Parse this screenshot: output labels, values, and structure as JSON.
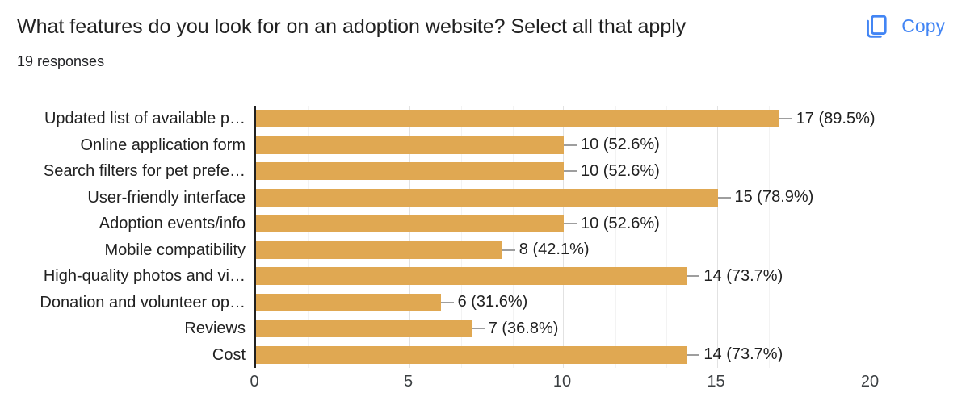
{
  "header": {
    "title": "What features do you look for on an adoption website? Select all that apply",
    "responses_text": "19 responses",
    "copy_label": "Copy"
  },
  "colors": {
    "bar_gold": "#e0a852",
    "accent_blue": "#4285f4",
    "text_dark": "#212121",
    "connector_gray": "#9e9e9e"
  },
  "chart_data": {
    "type": "bar",
    "orientation": "horizontal",
    "title": "What features do you look for on an adoption website? Select all that apply",
    "subtitle": "19 responses",
    "categories": [
      "Updated list of available p…",
      "Online application form",
      "Search filters for pet prefe…",
      "User-friendly interface",
      "Adoption events/info",
      "Mobile compatibility",
      "High-quality photos and vi…",
      "Donation and volunteer op…",
      "Reviews",
      "Cost"
    ],
    "values": [
      17,
      10,
      10,
      15,
      10,
      8,
      14,
      6,
      7,
      14
    ],
    "value_labels": [
      "17 (89.5%)",
      "10 (52.6%)",
      "10 (52.6%)",
      "15 (78.9%)",
      "10 (52.6%)",
      "8 (42.1%)",
      "14 (73.7%)",
      "6 (31.6%)",
      "7 (36.8%)",
      "14 (73.7%)"
    ],
    "xlabel": "",
    "ylabel": "",
    "xlim": [
      0,
      20
    ],
    "xticks": [
      0,
      5,
      10,
      15,
      20
    ],
    "grid": true,
    "legend": "none",
    "value_label_position": "outside-end"
  }
}
